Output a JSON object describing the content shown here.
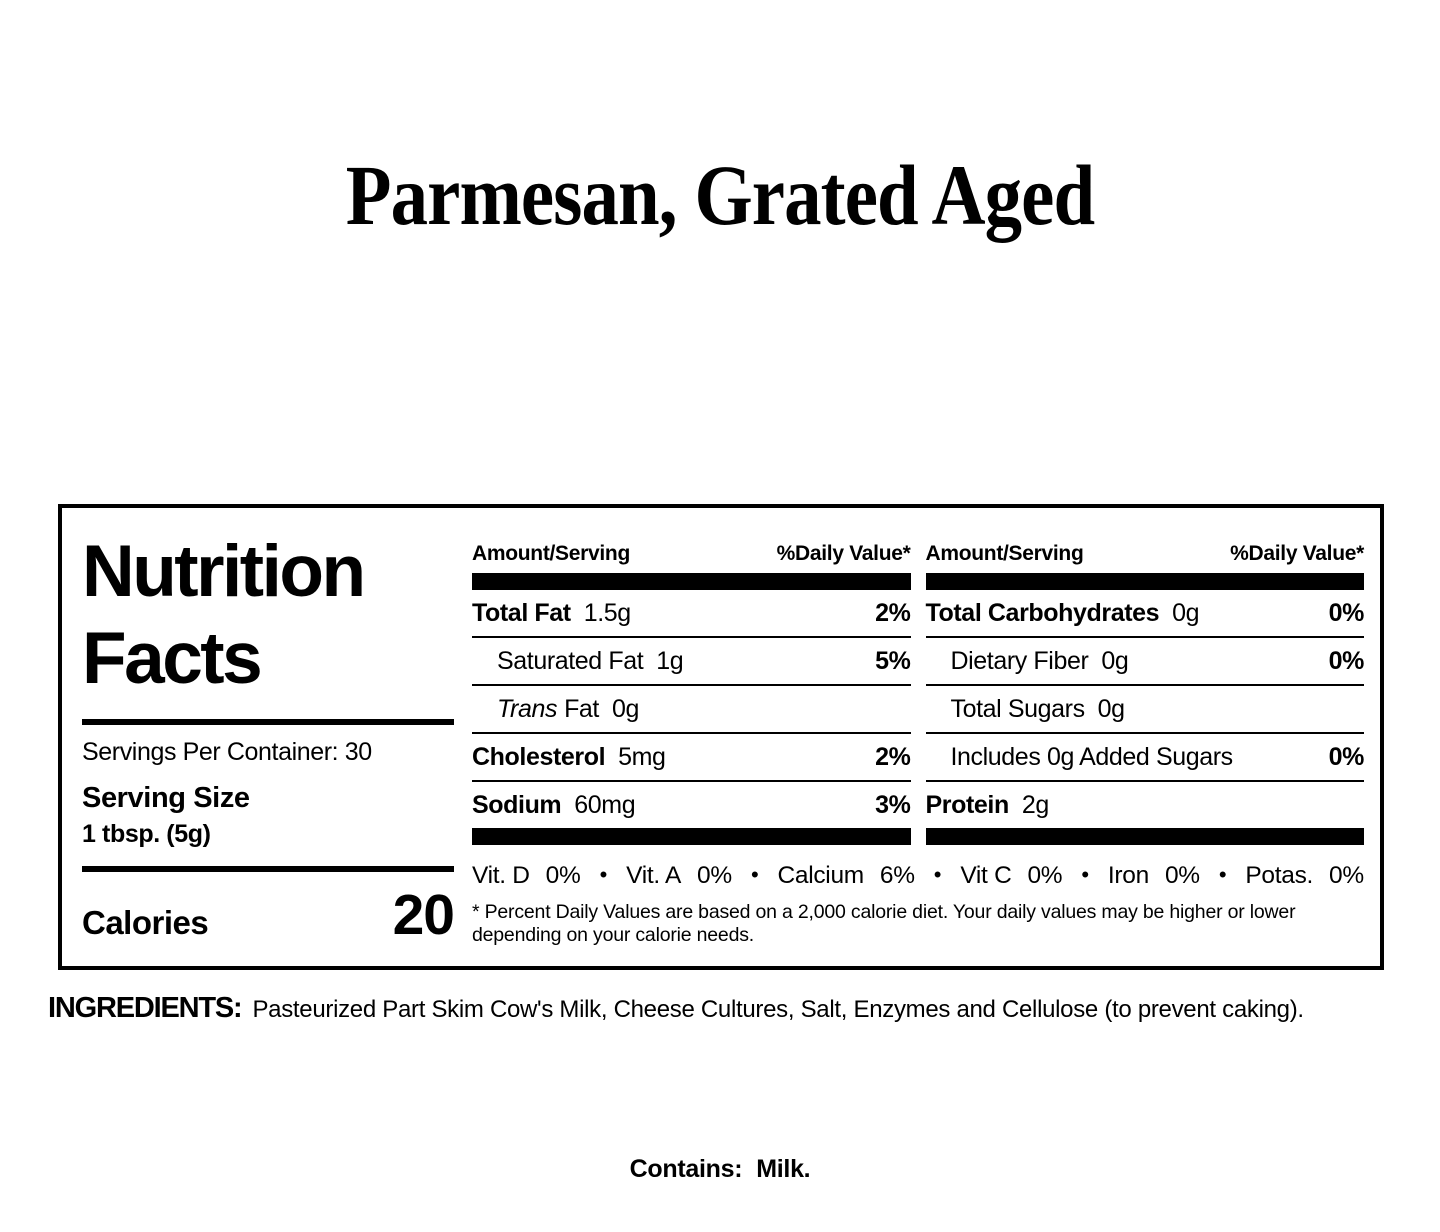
{
  "title": "Parmesan, Grated Aged",
  "panel": {
    "heading_line1": "Nutrition",
    "heading_line2": "Facts",
    "servings_per_container": "Servings Per Container: 30",
    "serving_size_label": "Serving Size",
    "serving_size_value": "1 tbsp. (5g)",
    "calories_label": "Calories",
    "calories_value": "20",
    "amount_header": "Amount/Serving",
    "dv_header": "%Daily Value*",
    "bullet": "•",
    "mid_rows": [
      {
        "label": "Total Fat",
        "value": "1.5g",
        "dv": "2%"
      },
      {
        "label": "Saturated Fat",
        "value": "1g",
        "dv": "5%"
      },
      {
        "label_italic": "Trans",
        "label_rest": "Fat",
        "value": "0g",
        "dv": ""
      },
      {
        "label": "Cholesterol",
        "value": "5mg",
        "dv": "2%"
      },
      {
        "label": "Sodium",
        "value": "60mg",
        "dv": "3%"
      }
    ],
    "right_rows": [
      {
        "label": "Total Carbohydrates",
        "value": "0g",
        "dv": "0%"
      },
      {
        "label": "Dietary Fiber",
        "value": "0g",
        "dv": "0%"
      },
      {
        "label": "Total Sugars",
        "value": "0g",
        "dv": ""
      },
      {
        "label": "Includes 0g Added Sugars",
        "value": "",
        "dv": "0%"
      },
      {
        "label": "Protein",
        "value": "2g",
        "dv": ""
      }
    ],
    "micronutrients": [
      {
        "name": "Vit. D",
        "value": "0%"
      },
      {
        "name": "Vit. A",
        "value": "0%"
      },
      {
        "name": "Calcium",
        "value": "6%"
      },
      {
        "name": "Vit C",
        "value": "0%"
      },
      {
        "name": "Iron",
        "value": "0%"
      },
      {
        "name": "Potas.",
        "value": "0%"
      }
    ],
    "footnote": "* Percent Daily Values are based on a 2,000 calorie diet. Your daily values may be higher or lower depending on your calorie needs."
  },
  "ingredients": {
    "label": "INGREDIENTS:",
    "text": "Pasteurized Part Skim Cow's Milk, Cheese Cultures, Salt, Enzymes and Cellulose (to prevent caking)."
  },
  "contains": {
    "label": "Contains:",
    "value": "Milk."
  }
}
